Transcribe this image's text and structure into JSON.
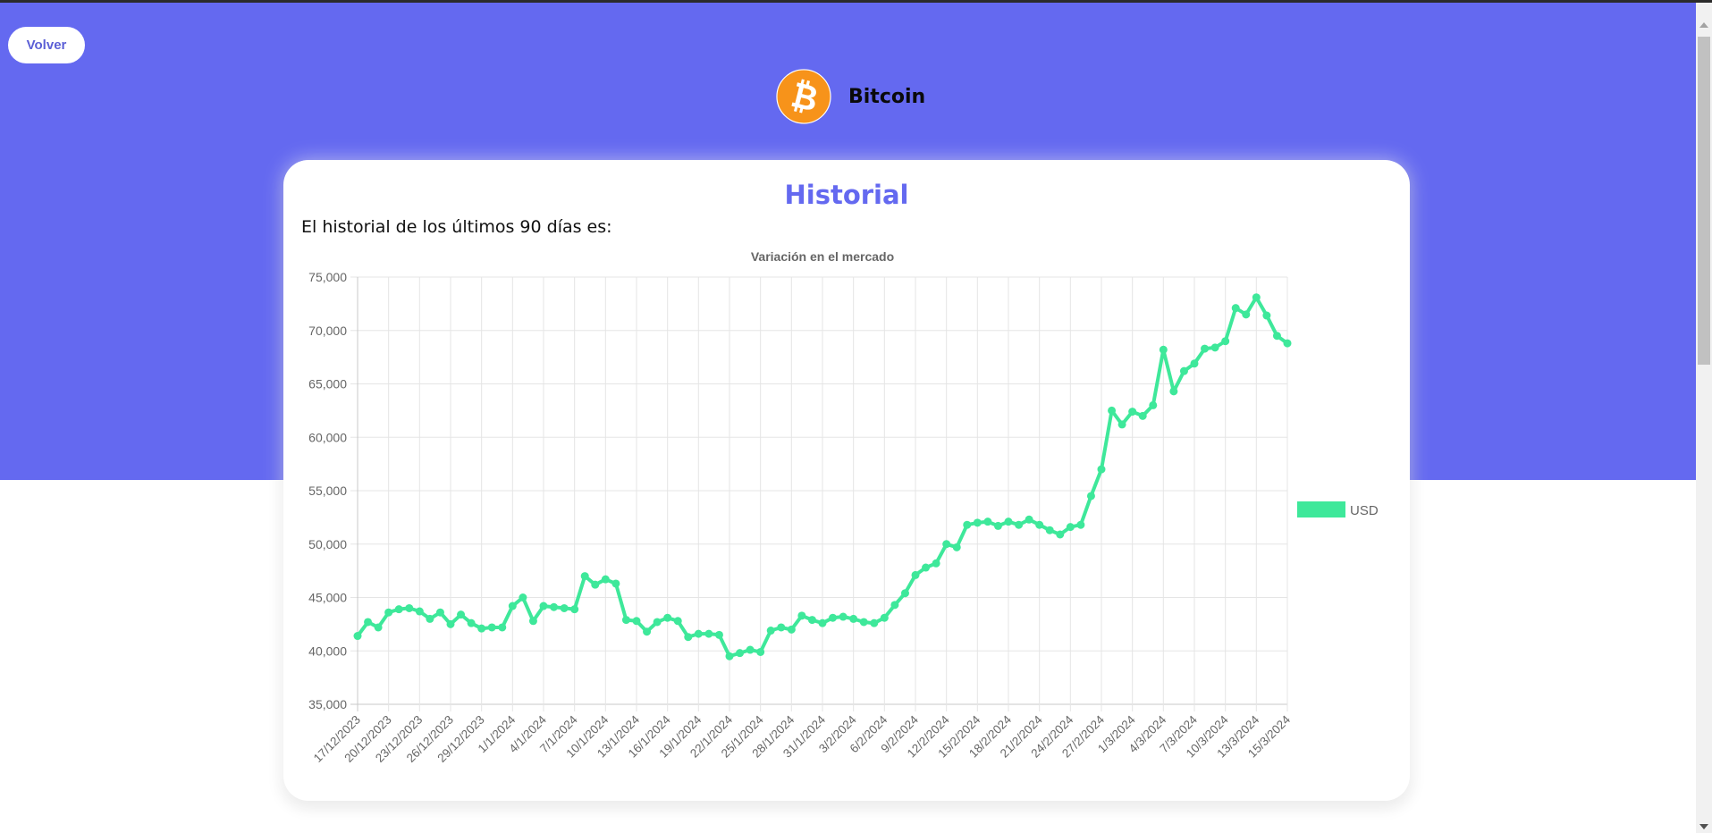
{
  "page": {
    "back_label": "Volver",
    "coin_name": "Bitcoin",
    "card_title": "Historial",
    "card_subtitle": "El historial de los últimos 90 días es:"
  },
  "colors": {
    "banner": "#6469f0",
    "accent": "#6469f0",
    "bitcoin_orange": "#f7931a",
    "series": "#3ee89a"
  },
  "icons": {
    "coin_logo": "bitcoin-icon"
  },
  "chart_data": {
    "type": "line",
    "title": "Variación en el mercado",
    "legend_position": "right",
    "grid": true,
    "ylim": [
      35000,
      75000
    ],
    "y_ticks": [
      "35,000",
      "40,000",
      "45,000",
      "50,000",
      "55,000",
      "60,000",
      "65,000",
      "70,000",
      "75,000"
    ],
    "x_tick_labels": [
      "17/12/2023",
      "20/12/2023",
      "23/12/2023",
      "26/12/2023",
      "29/12/2023",
      "1/1/2024",
      "4/1/2024",
      "7/1/2024",
      "10/1/2024",
      "13/1/2024",
      "16/1/2024",
      "19/1/2024",
      "22/1/2024",
      "25/1/2024",
      "28/1/2024",
      "31/1/2024",
      "3/2/2024",
      "6/2/2024",
      "9/2/2024",
      "12/2/2024",
      "15/2/2024",
      "18/2/2024",
      "21/2/2024",
      "24/2/2024",
      "27/2/2024",
      "1/3/2024",
      "4/3/2024",
      "7/3/2024",
      "10/3/2024",
      "13/3/2024",
      "15/3/2024"
    ],
    "series": [
      {
        "name": "USD",
        "values": [
          41400,
          42700,
          42200,
          43600,
          43900,
          44000,
          43700,
          43000,
          43600,
          42500,
          43400,
          42600,
          42100,
          42200,
          42200,
          44200,
          45000,
          42800,
          44200,
          44100,
          44000,
          43900,
          47000,
          46200,
          46700,
          46300,
          42900,
          42800,
          41800,
          42700,
          43100,
          42800,
          41300,
          41600,
          41600,
          41500,
          39500,
          39800,
          40100,
          39900,
          41900,
          42200,
          42000,
          43300,
          42900,
          42600,
          43100,
          43200,
          43000,
          42700,
          42600,
          43100,
          44300,
          45400,
          47100,
          47800,
          48200,
          50000,
          49700,
          51800,
          52000,
          52100,
          51700,
          52100,
          51800,
          52300,
          51800,
          51300,
          50900,
          51600,
          51800,
          54500,
          57000,
          62500,
          61200,
          62400,
          62000,
          63000,
          68200,
          64300,
          66200,
          66900,
          68300,
          68400,
          69000,
          72100,
          71500,
          73100,
          71400,
          69500,
          68800
        ]
      }
    ]
  }
}
